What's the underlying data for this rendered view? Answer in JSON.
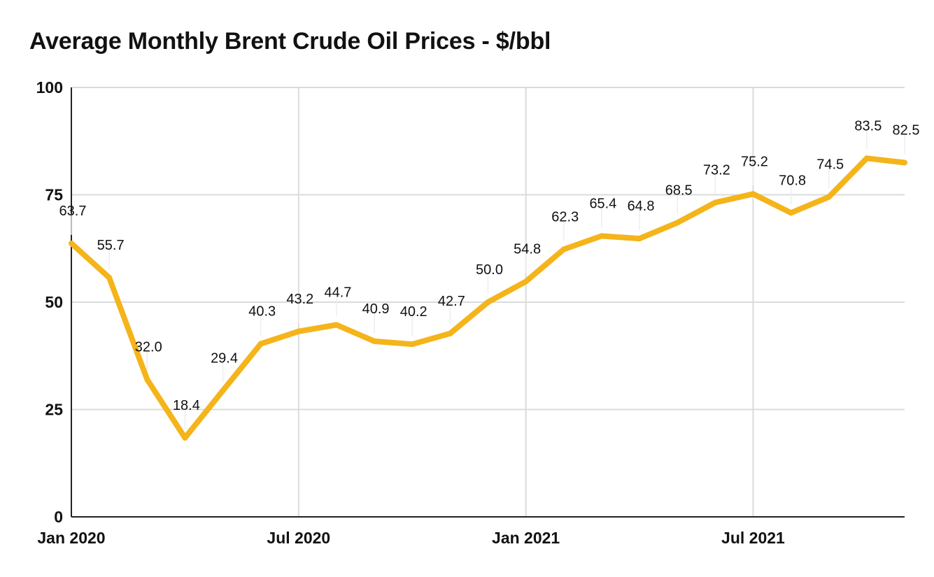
{
  "chart_data": {
    "type": "line",
    "title": "Average Monthly Brent Crude Oil Prices - $/bbl",
    "xlabel": "",
    "ylabel": "",
    "ylim": [
      0,
      100
    ],
    "yticks": [
      0,
      25,
      50,
      75,
      100
    ],
    "x_tick_labels": [
      {
        "month_index": 0,
        "label": "Jan 2020"
      },
      {
        "month_index": 6,
        "label": "Jul 2020"
      },
      {
        "month_index": 12,
        "label": "Jan 2021"
      },
      {
        "month_index": 18,
        "label": "Jul 2021"
      }
    ],
    "x": [
      "2020-01",
      "2020-02",
      "2020-03",
      "2020-04",
      "2020-05",
      "2020-06",
      "2020-07",
      "2020-08",
      "2020-09",
      "2020-10",
      "2020-11",
      "2020-12",
      "2021-01",
      "2021-02",
      "2021-03",
      "2021-04",
      "2021-05",
      "2021-06",
      "2021-07",
      "2021-08",
      "2021-09",
      "2021-10",
      "2021-11"
    ],
    "series": [
      {
        "values": [
          63.7,
          55.7,
          32.0,
          18.4,
          29.4,
          40.3,
          43.2,
          44.7,
          40.9,
          40.2,
          42.7,
          50.0,
          54.8,
          62.3,
          65.4,
          64.8,
          68.5,
          73.2,
          75.2,
          70.8,
          74.5,
          83.5,
          82.5
        ],
        "labels": [
          "63.7",
          "55.7",
          "32.0",
          "18.4",
          "29.4",
          "40.3",
          "43.2",
          "44.7",
          "40.9",
          "40.2",
          "42.7",
          "50.0",
          "54.8",
          "62.3",
          "65.4",
          "64.8",
          "68.5",
          "73.2",
          "75.2",
          "70.8",
          "74.5",
          "83.5",
          "82.5"
        ],
        "color": "#F4B41A"
      }
    ],
    "grid": true,
    "legend": "none",
    "colors": {
      "line": "#F4B41A",
      "grid": "#D9DCDC",
      "axis": "#222222",
      "text": "#111111"
    }
  }
}
